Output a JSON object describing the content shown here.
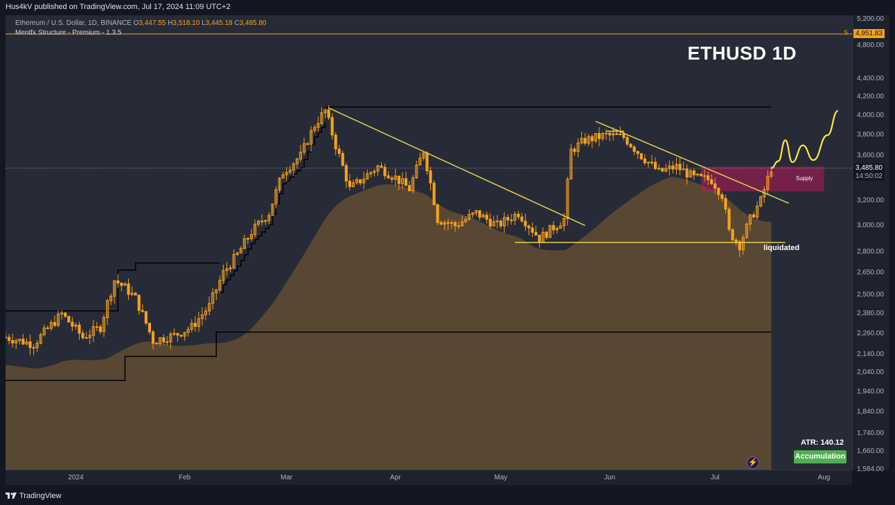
{
  "publish_bar": {
    "text": "Hus4kV published on TradingView.com, Jul 17, 2024 11:09 UTC+2"
  },
  "legend": {
    "symbol": "Ethereum / U.S. Dollar, 1D, BINANCE",
    "open_label": "O",
    "open": "3,447.55",
    "high_label": "H",
    "high": "3,518.10",
    "low_label": "L",
    "low": "3,445.18",
    "close_label": "C",
    "close": "3,485.80",
    "indicator": "Mentfx Structure - Premium - 1.3.5"
  },
  "watermark": "ETHUSD 1D",
  "price_axis": {
    "ticks": [
      "5,200.00",
      "4,800.00",
      "4,400.00",
      "4,200.00",
      "4,000.00",
      "3,800.00",
      "3,600.00",
      "3,200.00",
      "3,000.00",
      "2,800.00",
      "2,650.00",
      "2,500.00",
      "2,380.00",
      "2,260.00",
      "2,140.00",
      "2,040.00",
      "1,940.00",
      "1,840.00",
      "1,740.00",
      "1,660.00",
      "1,584.00"
    ],
    "target_price": "4,951.83",
    "target_marker": "S",
    "last_price": "3,485.80",
    "countdown": "14:50:02"
  },
  "time_axis": {
    "labels": [
      "2024",
      "Feb",
      "Mar",
      "Apr",
      "May",
      "Jun",
      "Jul",
      "Aug"
    ]
  },
  "annotations": {
    "supply": "Supply",
    "liquidated": "liquidated",
    "atr": "ATR: 140.12",
    "accumulation": "Accumulation"
  },
  "footer": {
    "brand": "TradingView"
  },
  "colors": {
    "background": "#131722",
    "plot_bg": "#272b38",
    "candle": "#f7a21b",
    "trendline": "#e8d348",
    "structure": "#000000",
    "cloud": "#5c4a33",
    "supply_zone": "#c2185b",
    "accumulation": "#4caf50"
  },
  "chart_data": {
    "type": "candlestick",
    "title": "ETHUSD 1D",
    "symbol": "Ethereum / U.S. Dollar, 1D, BINANCE",
    "ylim": [
      1584,
      5200
    ],
    "y_scale": "log",
    "x_range": [
      "2023-12-12",
      "2024-08-09"
    ],
    "ohlc_last": {
      "open": 3447.55,
      "high": 3518.1,
      "low": 3445.18,
      "close": 3485.8
    },
    "close_path": [
      [
        "2023-12-12",
        2240
      ],
      [
        "2023-12-20",
        2200
      ],
      [
        "2023-12-28",
        2380
      ],
      [
        "2024-01-03",
        2240
      ],
      [
        "2024-01-08",
        2300
      ],
      [
        "2024-01-12",
        2600
      ],
      [
        "2024-01-15",
        2550
      ],
      [
        "2024-01-18",
        2480
      ],
      [
        "2024-01-23",
        2220
      ],
      [
        "2024-01-29",
        2250
      ],
      [
        "2024-02-03",
        2300
      ],
      [
        "2024-02-08",
        2430
      ],
      [
        "2024-02-12",
        2650
      ],
      [
        "2024-02-16",
        2780
      ],
      [
        "2024-02-20",
        2950
      ],
      [
        "2024-02-25",
        3100
      ],
      [
        "2024-02-29",
        3450
      ],
      [
        "2024-03-05",
        3600
      ],
      [
        "2024-03-09",
        3900
      ],
      [
        "2024-03-12",
        4050
      ],
      [
        "2024-03-15",
        3700
      ],
      [
        "2024-03-19",
        3300
      ],
      [
        "2024-03-23",
        3400
      ],
      [
        "2024-03-27",
        3500
      ],
      [
        "2024-04-01",
        3400
      ],
      [
        "2024-04-05",
        3300
      ],
      [
        "2024-04-09",
        3650
      ],
      [
        "2024-04-13",
        3050
      ],
      [
        "2024-04-18",
        3000
      ],
      [
        "2024-04-24",
        3100
      ],
      [
        "2024-04-30",
        3000
      ],
      [
        "2024-05-06",
        3100
      ],
      [
        "2024-05-12",
        2900
      ],
      [
        "2024-05-19",
        3050
      ],
      [
        "2024-05-21",
        3650
      ],
      [
        "2024-05-25",
        3750
      ],
      [
        "2024-05-31",
        3800
      ],
      [
        "2024-06-05",
        3780
      ],
      [
        "2024-06-10",
        3600
      ],
      [
        "2024-06-15",
        3450
      ],
      [
        "2024-06-20",
        3500
      ],
      [
        "2024-06-25",
        3400
      ],
      [
        "2024-06-30",
        3380
      ],
      [
        "2024-07-03",
        3250
      ],
      [
        "2024-07-05",
        2950
      ],
      [
        "2024-07-08",
        2850
      ],
      [
        "2024-07-11",
        3050
      ],
      [
        "2024-07-14",
        3200
      ],
      [
        "2024-07-17",
        3485.8
      ]
    ],
    "levels": {
      "range_high": 4090,
      "liquidity_low": 2870,
      "supply_zone": [
        3280,
        3500
      ]
    },
    "projection": [
      [
        "2024-07-19",
        3550
      ],
      [
        "2024-07-21",
        3750
      ],
      [
        "2024-07-23",
        3540
      ],
      [
        "2024-07-26",
        3700
      ],
      [
        "2024-07-29",
        3560
      ],
      [
        "2024-08-02",
        3800
      ],
      [
        "2024-08-05",
        4050
      ]
    ]
  }
}
